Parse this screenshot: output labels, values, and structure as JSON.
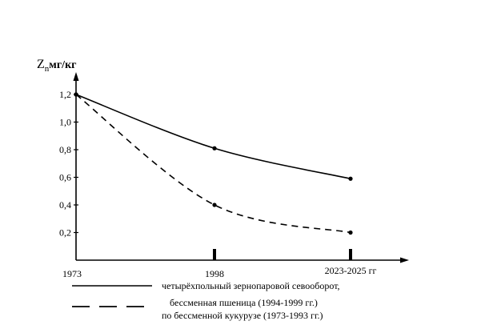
{
  "chart_data": {
    "type": "line",
    "ylabel": {
      "main": "Z",
      "sub": "n",
      "unit": "мг/кг"
    },
    "ylim": [
      0,
      1.3
    ],
    "y_ticks": [
      "0,2",
      "0,4",
      "0,6",
      "0,8",
      "1,0",
      "1,2"
    ],
    "y_tick_values": [
      0.2,
      0.4,
      0.6,
      0.8,
      1.0,
      1.2
    ],
    "x_labels": [
      "1973",
      "1998",
      "2023-2025 гг"
    ],
    "x_label_positions": [
      0,
      1,
      2
    ],
    "series": [
      {
        "style": "solid",
        "values": [
          1.2,
          0.81,
          0.59
        ]
      },
      {
        "style": "dashed",
        "values": [
          1.2,
          0.4,
          0.2
        ]
      }
    ],
    "legend": [
      {
        "style": "solid",
        "lines": [
          "четырёхпольный зернопаровой севооборот,"
        ]
      },
      {
        "style": "dashed",
        "lines": [
          "бессменная пшеница (1994-1999 гг.)",
          "по бессменной кукурузе (1973-1993 гг.)"
        ]
      }
    ]
  }
}
